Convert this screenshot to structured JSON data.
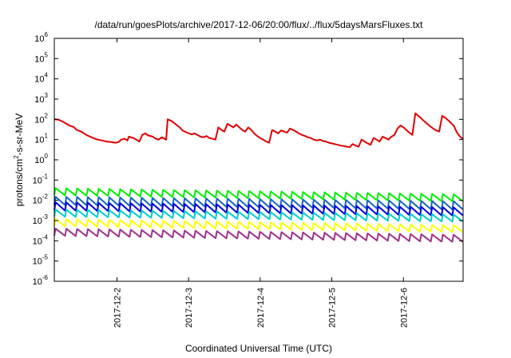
{
  "chart_data": {
    "type": "line",
    "title": "/data/run/goesPlots/archive/2017-12-06/20:00/flux/../flux/5daysMarsFluxes.txt",
    "xlabel": "Coordinated Universal Time (UTC)",
    "ylabel": {
      "prefix": "protons/cm",
      "sup": "2",
      "suffix": "-s-sr-MeV"
    },
    "yscale": "log",
    "ylim": [
      1e-06,
      1000000.0
    ],
    "y_ticks": [
      {
        "base": "10",
        "exp": "-6"
      },
      {
        "base": "10",
        "exp": "-5"
      },
      {
        "base": "10",
        "exp": "-4"
      },
      {
        "base": "10",
        "exp": "-3"
      },
      {
        "base": "10",
        "exp": "-2"
      },
      {
        "base": "10",
        "exp": "-1"
      },
      {
        "base": "10",
        "exp": "0"
      },
      {
        "base": "10",
        "exp": "1"
      },
      {
        "base": "10",
        "exp": "2"
      },
      {
        "base": "10",
        "exp": "3"
      },
      {
        "base": "10",
        "exp": "4"
      },
      {
        "base": "10",
        "exp": "5"
      },
      {
        "base": "10",
        "exp": "6"
      }
    ],
    "xlim": [
      "2017-12-01T03:00",
      "2017-12-06T20:00"
    ],
    "x_ticks": [
      {
        "label": "2017-12-2",
        "date": "2017-12-02T00:00"
      },
      {
        "label": "2017-12-3",
        "date": "2017-12-03T00:00"
      },
      {
        "label": "2017-12-4",
        "date": "2017-12-04T00:00"
      },
      {
        "label": "2017-12-5",
        "date": "2017-12-05T00:00"
      },
      {
        "label": "2017-12-6",
        "date": "2017-12-06T00:00"
      }
    ],
    "grid": false,
    "legend": "none",
    "series": [
      {
        "color": "#e00000",
        "points": [
          [
            "2017-12-01T03:00",
            100
          ],
          [
            "2017-12-01T04:30",
            95
          ],
          [
            "2017-12-01T06:00",
            75
          ],
          [
            "2017-12-01T08:00",
            50
          ],
          [
            "2017-12-01T09:30",
            42
          ],
          [
            "2017-12-01T10:30",
            30
          ],
          [
            "2017-12-01T12:00",
            25
          ],
          [
            "2017-12-01T13:30",
            18
          ],
          [
            "2017-12-01T14:30",
            15
          ],
          [
            "2017-12-01T16:00",
            12
          ],
          [
            "2017-12-01T17:30",
            10
          ],
          [
            "2017-12-01T19:00",
            9
          ],
          [
            "2017-12-01T20:30",
            8
          ],
          [
            "2017-12-01T22:00",
            7.5
          ],
          [
            "2017-12-01T23:30",
            7
          ],
          [
            "2017-12-02T00:30",
            7.5
          ],
          [
            "2017-12-02T01:30",
            10
          ],
          [
            "2017-12-02T02:30",
            11
          ],
          [
            "2017-12-02T03:30",
            9
          ],
          [
            "2017-12-02T04:00",
            14
          ],
          [
            "2017-12-02T05:30",
            12
          ],
          [
            "2017-12-02T06:30",
            10
          ],
          [
            "2017-12-02T07:30",
            8
          ],
          [
            "2017-12-02T08:30",
            17
          ],
          [
            "2017-12-02T09:30",
            20
          ],
          [
            "2017-12-02T10:30",
            16
          ],
          [
            "2017-12-02T12:00",
            14
          ],
          [
            "2017-12-02T13:00",
            11
          ],
          [
            "2017-12-02T14:00",
            10
          ],
          [
            "2017-12-02T15:00",
            13
          ],
          [
            "2017-12-02T16:30",
            10
          ],
          [
            "2017-12-02T17:00",
            100
          ],
          [
            "2017-12-02T18:30",
            80
          ],
          [
            "2017-12-02T19:30",
            60
          ],
          [
            "2017-12-02T21:00",
            40
          ],
          [
            "2017-12-02T22:00",
            28
          ],
          [
            "2017-12-02T23:30",
            22
          ],
          [
            "2017-12-03T01:00",
            18
          ],
          [
            "2017-12-03T02:00",
            20
          ],
          [
            "2017-12-03T03:00",
            17
          ],
          [
            "2017-12-03T04:00",
            14
          ],
          [
            "2017-12-03T05:00",
            13
          ],
          [
            "2017-12-03T06:00",
            15
          ],
          [
            "2017-12-03T07:00",
            12
          ],
          [
            "2017-12-03T08:00",
            11
          ],
          [
            "2017-12-03T09:00",
            10
          ],
          [
            "2017-12-03T10:00",
            40
          ],
          [
            "2017-12-03T11:00",
            30
          ],
          [
            "2017-12-03T12:00",
            25
          ],
          [
            "2017-12-03T13:00",
            60
          ],
          [
            "2017-12-03T14:00",
            50
          ],
          [
            "2017-12-03T15:00",
            40
          ],
          [
            "2017-12-03T16:00",
            55
          ],
          [
            "2017-12-03T17:00",
            40
          ],
          [
            "2017-12-03T18:00",
            30
          ],
          [
            "2017-12-03T19:00",
            25
          ],
          [
            "2017-12-03T20:00",
            40
          ],
          [
            "2017-12-03T21:00",
            30
          ],
          [
            "2017-12-03T22:00",
            20
          ],
          [
            "2017-12-03T23:00",
            15
          ],
          [
            "2017-12-04T00:00",
            12
          ],
          [
            "2017-12-04T01:00",
            10
          ],
          [
            "2017-12-04T02:00",
            8
          ],
          [
            "2017-12-04T03:00",
            7
          ],
          [
            "2017-12-04T04:00",
            30
          ],
          [
            "2017-12-04T05:00",
            25
          ],
          [
            "2017-12-04T06:00",
            20
          ],
          [
            "2017-12-04T07:00",
            28
          ],
          [
            "2017-12-04T08:00",
            25
          ],
          [
            "2017-12-04T09:00",
            22
          ],
          [
            "2017-12-04T10:00",
            35
          ],
          [
            "2017-12-04T11:00",
            30
          ],
          [
            "2017-12-04T12:00",
            25
          ],
          [
            "2017-12-04T13:00",
            20
          ],
          [
            "2017-12-04T14:00",
            17
          ],
          [
            "2017-12-04T15:00",
            15
          ],
          [
            "2017-12-04T16:00",
            13
          ],
          [
            "2017-12-04T17:00",
            12
          ],
          [
            "2017-12-04T18:00",
            10
          ],
          [
            "2017-12-04T19:00",
            9
          ],
          [
            "2017-12-04T20:00",
            10
          ],
          [
            "2017-12-04T21:00",
            8.5
          ],
          [
            "2017-12-04T22:00",
            8
          ],
          [
            "2017-12-04T23:00",
            7
          ],
          [
            "2017-12-05T00:00",
            6.5
          ],
          [
            "2017-12-05T01:00",
            6
          ],
          [
            "2017-12-05T02:00",
            5.5
          ],
          [
            "2017-12-05T03:00",
            5
          ],
          [
            "2017-12-05T04:00",
            4.8
          ],
          [
            "2017-12-05T05:00",
            4.5
          ],
          [
            "2017-12-05T06:00",
            4.2
          ],
          [
            "2017-12-05T07:00",
            6
          ],
          [
            "2017-12-05T08:00",
            5
          ],
          [
            "2017-12-05T09:00",
            4.5
          ],
          [
            "2017-12-05T10:00",
            10
          ],
          [
            "2017-12-05T11:00",
            8
          ],
          [
            "2017-12-05T12:00",
            6.5
          ],
          [
            "2017-12-05T13:00",
            5.5
          ],
          [
            "2017-12-05T14:00",
            12
          ],
          [
            "2017-12-05T15:00",
            10
          ],
          [
            "2017-12-05T16:00",
            8
          ],
          [
            "2017-12-05T17:00",
            14
          ],
          [
            "2017-12-05T18:00",
            12
          ],
          [
            "2017-12-05T19:00",
            10
          ],
          [
            "2017-12-05T20:00",
            14
          ],
          [
            "2017-12-05T21:00",
            17
          ],
          [
            "2017-12-05T22:00",
            35
          ],
          [
            "2017-12-05T23:00",
            50
          ],
          [
            "2017-12-06T00:00",
            40
          ],
          [
            "2017-12-06T01:00",
            30
          ],
          [
            "2017-12-06T02:00",
            22
          ],
          [
            "2017-12-06T03:00",
            17
          ],
          [
            "2017-12-06T04:00",
            200
          ],
          [
            "2017-12-06T05:00",
            150
          ],
          [
            "2017-12-06T06:00",
            110
          ],
          [
            "2017-12-06T07:00",
            80
          ],
          [
            "2017-12-06T08:00",
            60
          ],
          [
            "2017-12-06T09:00",
            45
          ],
          [
            "2017-12-06T10:00",
            35
          ],
          [
            "2017-12-06T11:00",
            28
          ],
          [
            "2017-12-06T12:00",
            25
          ],
          [
            "2017-12-06T13:00",
            150
          ],
          [
            "2017-12-06T14:00",
            120
          ],
          [
            "2017-12-06T15:00",
            90
          ],
          [
            "2017-12-06T16:00",
            65
          ],
          [
            "2017-12-06T17:00",
            45
          ],
          [
            "2017-12-06T17:30",
            30
          ],
          [
            "2017-12-06T18:00",
            22
          ],
          [
            "2017-12-06T18:30",
            17
          ],
          [
            "2017-12-06T19:00",
            14
          ],
          [
            "2017-12-06T19:30",
            12
          ],
          [
            "2017-12-06T20:00",
            11
          ]
        ]
      },
      {
        "color": "#00ee00",
        "sawtooth": {
          "start": "2017-12-01T03:00",
          "end": "2017-12-06T20:00",
          "teeth": 38,
          "peak_start": 0.04,
          "peak_end": 0.02,
          "depth": 0.45
        }
      },
      {
        "color": "#1565c0",
        "sawtooth": {
          "start": "2017-12-01T03:00",
          "end": "2017-12-06T20:00",
          "teeth": 38,
          "peak_start": 0.015,
          "peak_end": 0.009,
          "depth": 0.4
        }
      },
      {
        "color": "#0000d8",
        "sawtooth": {
          "start": "2017-12-01T03:00",
          "end": "2017-12-06T20:00",
          "teeth": 38,
          "peak_start": 0.008,
          "peak_end": 0.0045,
          "depth": 0.4
        }
      },
      {
        "color": "#00cccc",
        "sawtooth": {
          "start": "2017-12-01T03:00",
          "end": "2017-12-06T20:00",
          "teeth": 38,
          "peak_start": 0.0035,
          "peak_end": 0.002,
          "depth": 0.45
        }
      },
      {
        "color": "#ffff00",
        "sawtooth": {
          "start": "2017-12-01T03:00",
          "end": "2017-12-06T20:00",
          "teeth": 38,
          "peak_start": 0.0012,
          "peak_end": 0.0006,
          "depth": 0.45
        }
      },
      {
        "color": "#a0308a",
        "sawtooth": {
          "start": "2017-12-01T03:00",
          "end": "2017-12-06T20:00",
          "teeth": 38,
          "peak_start": 0.0004,
          "peak_end": 0.0002,
          "depth": 0.45
        }
      }
    ]
  }
}
